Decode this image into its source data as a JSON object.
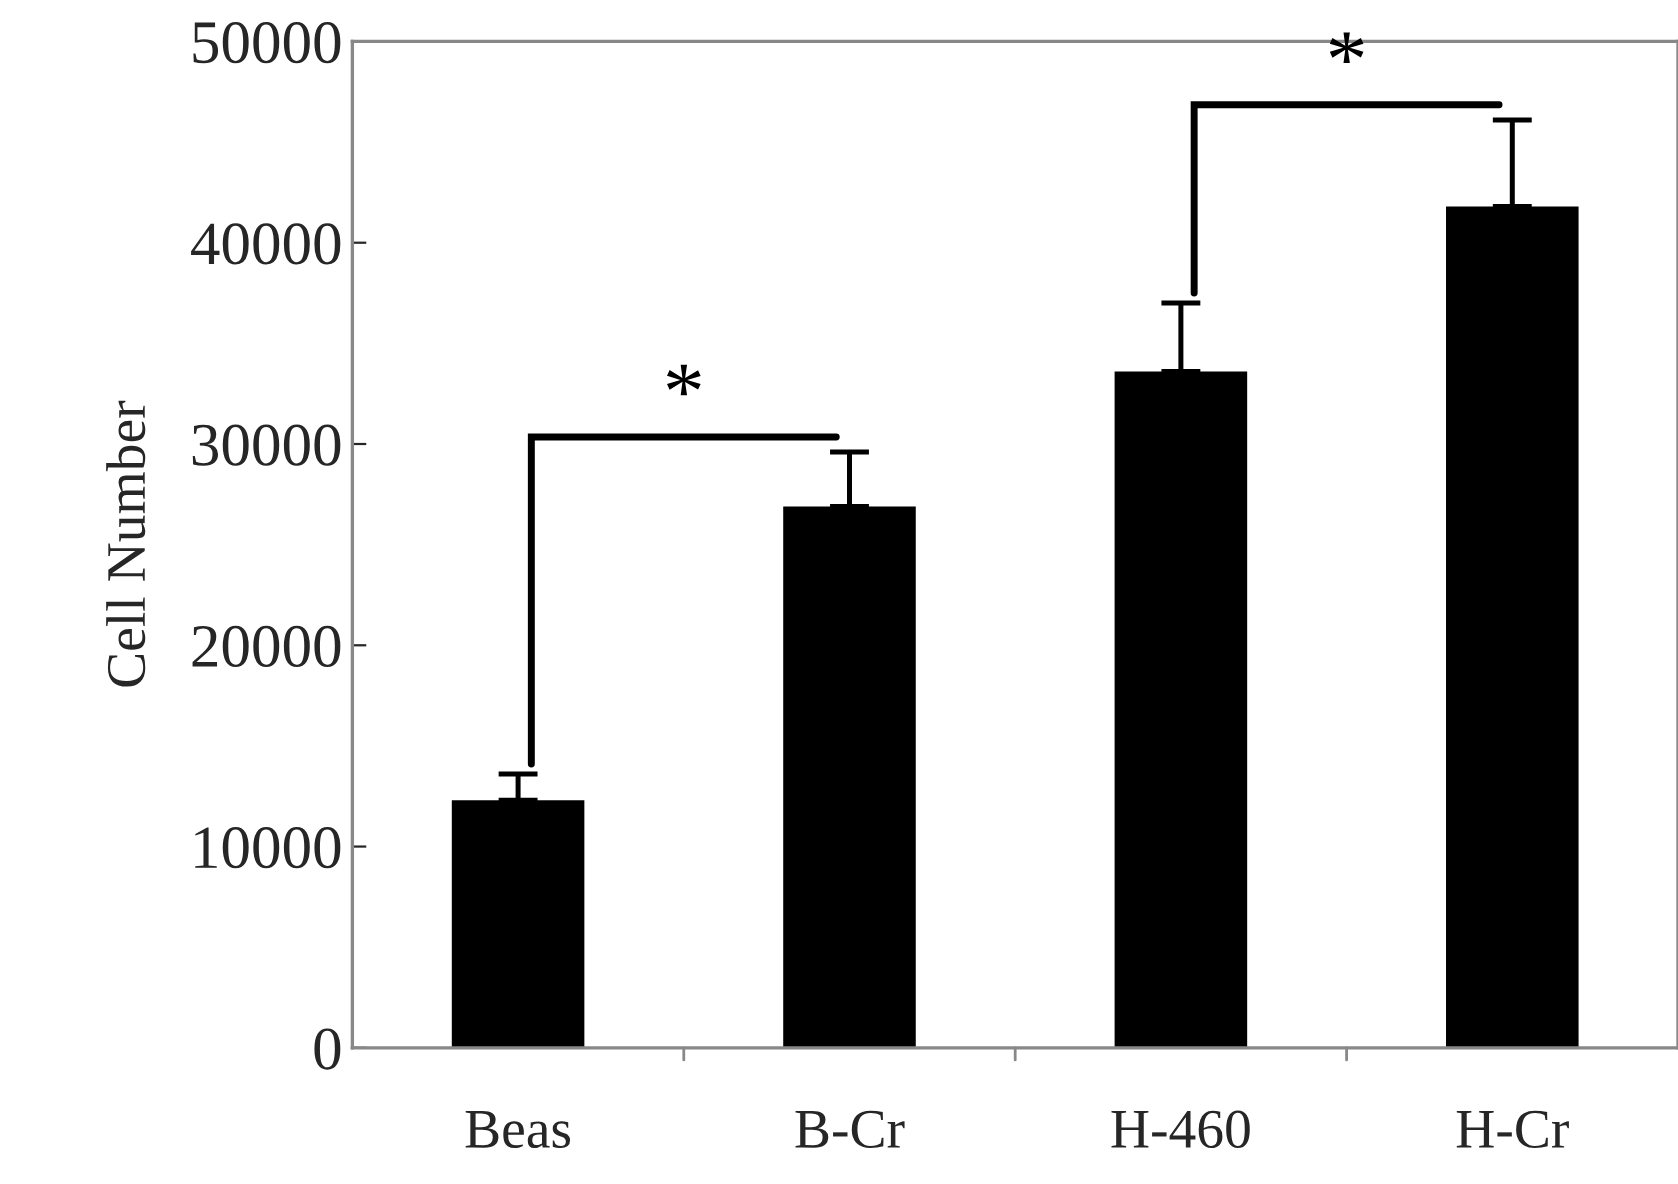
{
  "chart_data": {
    "type": "bar",
    "ylabel": "Cell Number",
    "categories": [
      "Beas",
      "B-Cr",
      "H-460",
      "H-Cr"
    ],
    "values": [
      12300,
      26900,
      33600,
      41800
    ],
    "errors": [
      [
        12300,
        13600
      ],
      [
        26900,
        29600
      ],
      [
        33600,
        37000
      ],
      [
        41800,
        46100
      ]
    ],
    "color": "#000000",
    "ylim": [
      0,
      50000
    ],
    "yticks": [
      0,
      10000,
      20000,
      30000,
      40000,
      50000
    ],
    "grid": false,
    "annotations": [
      "*",
      "*"
    ]
  }
}
